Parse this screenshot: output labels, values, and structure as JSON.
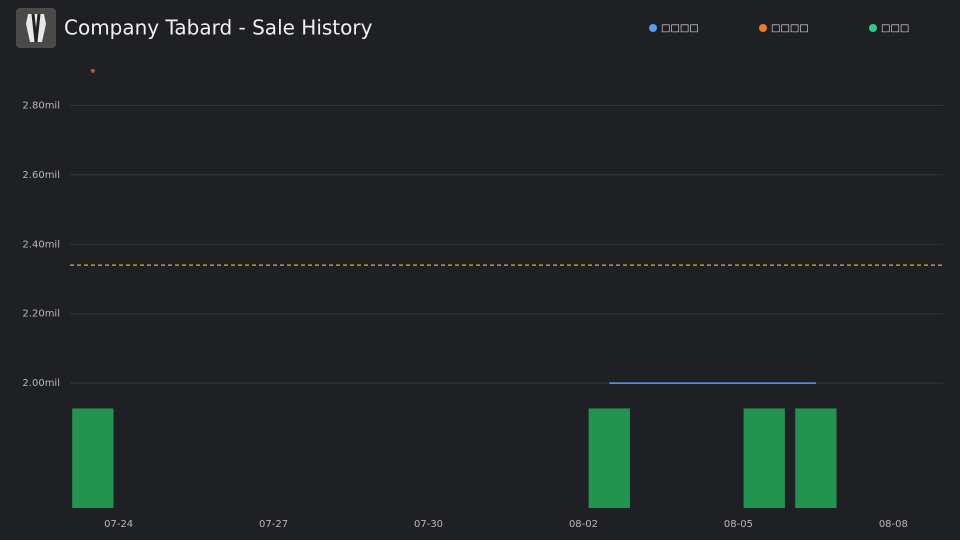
{
  "chart_data": {
    "type": "combo",
    "title": "Company Tabard - Sale History",
    "xlim": [
      "07-23",
      "08-09"
    ],
    "xticks": [
      "07-24",
      "07-27",
      "07-30",
      "08-02",
      "08-05",
      "08-08"
    ],
    "ylim": [
      1640000,
      2960000
    ],
    "yticks": [
      {
        "value": 2000000,
        "label": "2.00mil"
      },
      {
        "value": 2200000,
        "label": "2.20mil"
      },
      {
        "value": 2400000,
        "label": "2.40mil"
      },
      {
        "value": 2600000,
        "label": "2.60mil"
      },
      {
        "value": 2800000,
        "label": "2.80mil"
      }
    ],
    "y2lim": [
      0,
      4.6
    ],
    "grid": true,
    "reference_line": {
      "value": 2340000,
      "color": "#e6b422"
    },
    "series": [
      {
        "name": "□□□□",
        "color": "#5b9bf0",
        "kind": "line",
        "x": [
          "08-02",
          "08-05",
          "08-06"
        ],
        "values": [
          2000000,
          2000000,
          2000000
        ]
      },
      {
        "name": "□□□□",
        "color": "#f07a2a",
        "kind": "scatter",
        "x": [
          "07-23"
        ],
        "values": [
          2900000
        ]
      },
      {
        "name": "□□□",
        "color": "#2ecc8a",
        "bar_color": "#23944f",
        "kind": "bar",
        "axis": "y2",
        "x": [
          "07-23",
          "08-02",
          "08-05",
          "08-06"
        ],
        "values": [
          1,
          1,
          1,
          1
        ]
      }
    ]
  }
}
